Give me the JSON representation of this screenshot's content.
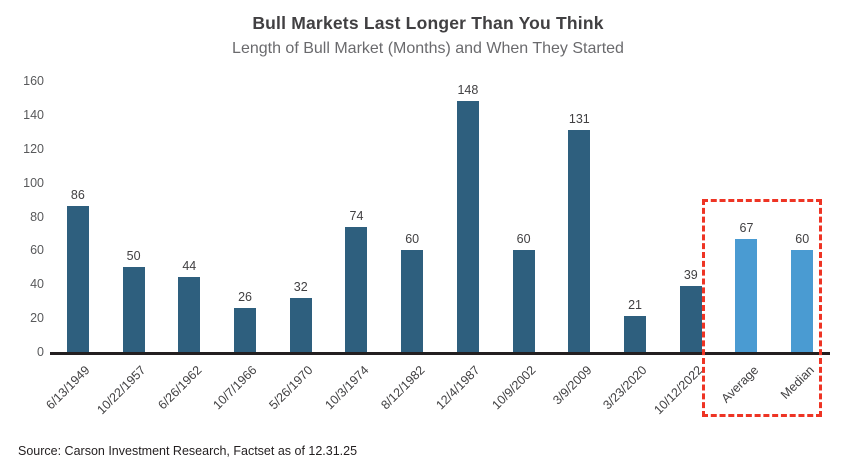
{
  "chart_data": {
    "type": "bar",
    "title": "Bull Markets Last Longer Than You Think",
    "subtitle": "Length of Bull Market (Months) and When They Started",
    "categories": [
      "6/13/1949",
      "10/22/1957",
      "6/26/1962",
      "10/7/1966",
      "5/26/1970",
      "10/3/1974",
      "8/12/1982",
      "12/4/1987",
      "10/9/2002",
      "3/9/2009",
      "3/23/2020",
      "10/12/2022",
      "Average",
      "Median"
    ],
    "values": [
      86,
      50,
      44,
      26,
      32,
      74,
      60,
      148,
      60,
      131,
      21,
      39,
      67,
      60
    ],
    "highlighted": [
      "Average",
      "Median"
    ],
    "annotation": "red dashed box around Average and Median bars",
    "xlabel": "",
    "ylabel": "",
    "ylim": [
      0,
      160
    ],
    "y_ticks": [
      0,
      20,
      40,
      60,
      80,
      100,
      120,
      140,
      160
    ],
    "grid": false,
    "legend": false,
    "data_labels": true
  },
  "source": "Source: Carson Investment Research, Factset as of 12.31.25",
  "colors": {
    "bar": "#2e5f7e",
    "highlight_bar": "#4a9bd2",
    "box": "#ee3424",
    "axis": "#231f20",
    "title_text": "#414042",
    "subtitle_text": "#6a6a6d",
    "tick_text": "#58595b"
  }
}
